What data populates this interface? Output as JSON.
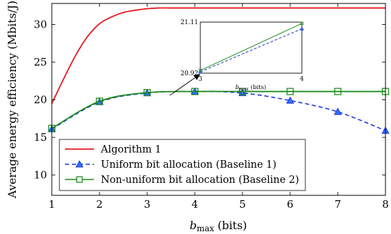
{
  "chart_data": {
    "type": "line",
    "xlabel": "b",
    "xlabel_sub": "max",
    "xlabel_unit": "(bits)",
    "ylabel": "Average energy efficiency (Mbits/J)",
    "xlim": [
      1,
      8
    ],
    "ylim": [
      7.3,
      32.8
    ],
    "x_ticks": [
      1,
      2,
      3,
      4,
      5,
      6,
      7,
      8
    ],
    "y_ticks": [
      10,
      15,
      20,
      25,
      30
    ],
    "grid": false,
    "legend_position": "bottom-left",
    "series": [
      {
        "name": "Algorithm 1",
        "color": "#e8141b",
        "style": "solid",
        "marker": "none",
        "x": [
          1,
          1.25,
          1.5,
          1.75,
          2,
          2.25,
          2.5,
          2.75,
          3,
          3.25,
          3.5,
          4,
          5,
          6,
          7,
          8
        ],
        "values": [
          19.5,
          22.8,
          25.9,
          28.4,
          30.1,
          31.0,
          31.6,
          31.9,
          32.1,
          32.2,
          32.2,
          32.2,
          32.2,
          32.2,
          32.2,
          32.2
        ]
      },
      {
        "name": "Uniform bit allocation (Baseline 1)",
        "color": "#1a35d6",
        "style": "dashed",
        "marker": "triangle",
        "x": [
          1,
          2,
          3,
          4,
          5,
          6,
          7,
          8
        ],
        "values": [
          16.1,
          19.7,
          20.9,
          21.1,
          20.9,
          19.9,
          18.4,
          15.9
        ]
      },
      {
        "name": "Non-uniform bit allocation (Baseline 2)",
        "color": "#1a8a1a",
        "style": "solid",
        "marker": "square",
        "x": [
          1,
          2,
          3,
          4,
          5,
          6,
          7,
          8
        ],
        "values": [
          16.2,
          19.8,
          20.95,
          21.1,
          21.1,
          21.1,
          21.1,
          21.1
        ]
      }
    ],
    "inset": {
      "xlim": [
        3,
        4
      ],
      "ylim": [
        20.92,
        21.11
      ],
      "x_ticks": [
        "3",
        "4"
      ],
      "y_ticks": [
        "20.92",
        "21.11"
      ],
      "xlabel": "b",
      "xlabel_sub": "max",
      "xlabel_unit": "(bits)",
      "series": [
        {
          "name": "Uniform bit allocation (Baseline 1)",
          "x": [
            3,
            4
          ],
          "values": [
            20.925,
            21.085
          ]
        },
        {
          "name": "Non-uniform bit allocation (Baseline 2)",
          "x": [
            3,
            4
          ],
          "values": [
            20.93,
            21.105
          ]
        }
      ]
    }
  }
}
